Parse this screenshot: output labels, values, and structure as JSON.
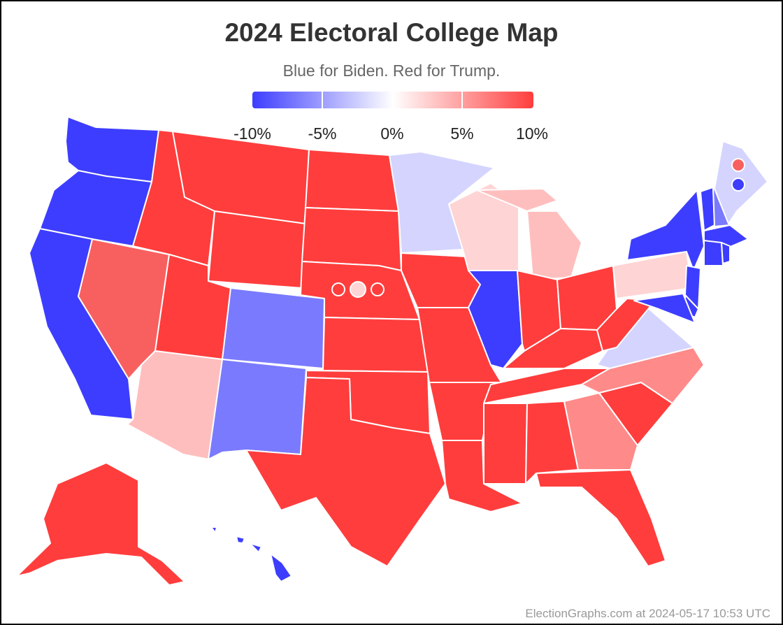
{
  "header": {
    "title": "2024 Electoral College Map",
    "subtitle": "Blue for Biden. Red for Trump."
  },
  "legend": {
    "labels": [
      "-10%",
      "-5%",
      "0%",
      "5%",
      "10%"
    ],
    "colors": {
      "strong_blue": "#3d3dff",
      "lean_blue": "#7a7aff",
      "tilt_blue": "#d4d4ff",
      "tilt_red": "#ffd4d4",
      "weak_red": "#ffbebe",
      "lean_red": "#ff8a8a",
      "mid_red": "#f86060",
      "strong_red": "#ff3d3d"
    }
  },
  "states": {
    "WA": "strong_blue",
    "OR": "strong_blue",
    "CA": "strong_blue",
    "NV": "mid_red",
    "ID": "strong_red",
    "MT": "strong_red",
    "WY": "strong_red",
    "UT": "strong_red",
    "AZ": "weak_red",
    "CO": "lean_blue",
    "NM": "lean_blue",
    "ND": "strong_red",
    "SD": "strong_red",
    "NE": "strong_red",
    "KS": "strong_red",
    "OK": "strong_red",
    "TX": "strong_red",
    "MN": "tilt_blue",
    "IA": "strong_red",
    "MO": "strong_red",
    "AR": "strong_red",
    "LA": "strong_red",
    "WI": "tilt_red",
    "MI": "weak_red",
    "IL": "strong_blue",
    "IN": "strong_red",
    "OH": "strong_red",
    "KY": "strong_red",
    "TN": "strong_red",
    "MS": "strong_red",
    "AL": "strong_red",
    "GA": "lean_red",
    "FL": "strong_red",
    "SC": "strong_red",
    "NC": "lean_red",
    "VA": "tilt_blue",
    "WV": "strong_red",
    "PA": "tilt_red",
    "NY": "strong_blue",
    "VT": "strong_blue",
    "NH": "lean_blue",
    "ME": "tilt_blue",
    "MA": "strong_blue",
    "CT": "strong_blue",
    "RI": "strong_blue",
    "NJ": "strong_blue",
    "DE": "strong_blue",
    "MD": "strong_blue",
    "AK": "strong_red",
    "HI": "strong_blue"
  },
  "districts": {
    "NE_CD": [
      "strong_red",
      "tilt_red",
      "strong_red"
    ],
    "ME_CD": [
      "mid_red",
      "strong_blue"
    ]
  },
  "footer": {
    "attribution": "ElectionGraphs.com at 2024-05-17 10:53 UTC"
  }
}
